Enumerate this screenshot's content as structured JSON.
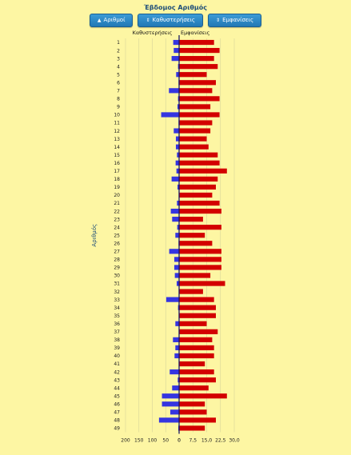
{
  "header": {
    "title": "Έβδομος Αριθμός",
    "buttons": [
      {
        "label": "Αριθμοί",
        "icon": "arrow-up-icon"
      },
      {
        "label": "Καθυστερήσεις",
        "icon": "sort-icon"
      },
      {
        "label": "Εμφανίσεις",
        "icon": "sort-icon"
      }
    ]
  },
  "colors": {
    "delay": "#3535e0",
    "appear": "#d30000",
    "background": "#fdf6a3",
    "title": "#1f4e79"
  },
  "chart_data": {
    "type": "bar",
    "orientation": "horizontal",
    "ylabel": "Αριθμός",
    "categories": [
      "1",
      "2",
      "3",
      "4",
      "5",
      "6",
      "7",
      "8",
      "9",
      "10",
      "11",
      "12",
      "13",
      "14",
      "15",
      "16",
      "17",
      "18",
      "19",
      "20",
      "21",
      "22",
      "23",
      "24",
      "25",
      "26",
      "27",
      "28",
      "29",
      "30",
      "31",
      "32",
      "33",
      "34",
      "35",
      "36",
      "37",
      "38",
      "39",
      "40",
      "41",
      "42",
      "43",
      "44",
      "45",
      "46",
      "47",
      "48",
      "49"
    ],
    "series": [
      {
        "name": "Καθυστερήσεις",
        "side": "left",
        "ticks": [
          "200",
          "150",
          "100",
          "50",
          "0"
        ],
        "xlim": [
          0,
          200
        ],
        "values": [
          22,
          20,
          28,
          4,
          11,
          2,
          38,
          4,
          6,
          67,
          2,
          20,
          12,
          12,
          8,
          13,
          10,
          28,
          6,
          0,
          8,
          31,
          26,
          7,
          14,
          2,
          37,
          18,
          18,
          16,
          9,
          1,
          48,
          4,
          0,
          14,
          1,
          23,
          14,
          17,
          1,
          35,
          5,
          26,
          64,
          64,
          33,
          75,
          3
        ]
      },
      {
        "name": "Εμφανίσεις",
        "side": "right",
        "ticks": [
          "0",
          "7,5",
          "15,0",
          "22,5",
          "30,0"
        ],
        "xlim": [
          0,
          30
        ],
        "values": [
          19,
          22,
          19,
          21,
          15,
          20,
          18,
          22,
          17,
          22,
          18,
          17,
          15,
          16,
          21,
          22,
          26,
          21,
          20,
          18,
          22,
          23,
          13,
          23,
          14,
          18,
          23,
          23,
          23,
          17,
          25,
          13,
          19,
          20,
          20,
          15,
          21,
          18,
          19,
          19,
          14,
          19,
          20,
          16,
          26,
          14,
          15,
          20,
          14
        ]
      }
    ],
    "grid": true
  }
}
